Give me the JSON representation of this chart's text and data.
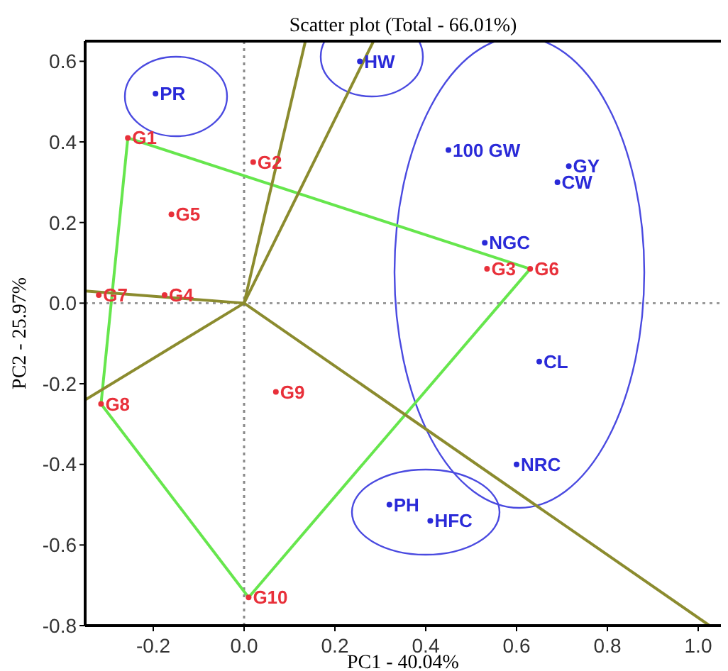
{
  "chart_data": {
    "type": "scatter",
    "title": "Scatter plot (Total - 66.01%)",
    "xlabel": "PC1 - 40.04%",
    "ylabel": "PC2 - 25.97%",
    "xlim": [
      -0.35,
      1.05
    ],
    "ylim": [
      -0.8,
      0.65
    ],
    "xticks": [
      {
        "value": -0.2,
        "label": "-0.2"
      },
      {
        "value": 0,
        "label": "0.0"
      },
      {
        "value": 0.2,
        "label": "0.2"
      },
      {
        "value": 0.4,
        "label": "0.4"
      },
      {
        "value": 0.6,
        "label": "0.6"
      },
      {
        "value": 0.8,
        "label": "0.8"
      },
      {
        "value": 1,
        "label": "1.0"
      }
    ],
    "yticks": [
      {
        "value": -0.8,
        "label": "-0.8"
      },
      {
        "value": -0.6,
        "label": "-0.6"
      },
      {
        "value": -0.4,
        "label": "-0.4"
      },
      {
        "value": -0.2,
        "label": "-0.2"
      },
      {
        "value": 0,
        "label": "0.0"
      },
      {
        "value": 0.2,
        "label": "0.2"
      },
      {
        "value": 0.4,
        "label": "0.4"
      },
      {
        "value": 0.6,
        "label": "0.6"
      }
    ],
    "grid": false,
    "marker": "circle",
    "ref_lines": [
      {
        "axis": "x",
        "value": 0,
        "line_style": "dotted",
        "color": "#888888"
      },
      {
        "axis": "y",
        "value": 0,
        "line_style": "dotted",
        "color": "#9a9a9a"
      }
    ],
    "series": [
      {
        "type": "line",
        "marker": "none",
        "color": "#66e64d",
        "x": [
          -0.256,
          0.63
        ],
        "values": [
          0.41,
          0.085
        ]
      },
      {
        "type": "line",
        "marker": "none",
        "color": "#66e64d",
        "x": [
          0.01,
          0.63
        ],
        "values": [
          -0.73,
          0.085
        ]
      },
      {
        "type": "line",
        "marker": "none",
        "color": "#66e64d",
        "x": [
          -0.315,
          0.01
        ],
        "values": [
          -0.25,
          -0.73
        ]
      },
      {
        "type": "line",
        "marker": "none",
        "color": "#66e64d",
        "x": [
          -0.315,
          -0.256
        ],
        "values": [
          -0.25,
          0.41
        ]
      },
      {
        "type": "line",
        "marker": "none",
        "color": "#8b8b2e",
        "x": [
          0,
          0.135
        ],
        "values": [
          0,
          0.65
        ]
      },
      {
        "type": "line",
        "marker": "none",
        "color": "#8b8b2e",
        "x": [
          0,
          0.285
        ],
        "values": [
          0,
          0.65
        ]
      },
      {
        "type": "line",
        "marker": "none",
        "color": "#8b8b2e",
        "x": [
          -0.35,
          0
        ],
        "values": [
          0.03,
          0
        ]
      },
      {
        "type": "line",
        "marker": "none",
        "color": "#8b8b2e",
        "x": [
          -0.35,
          0
        ],
        "values": [
          -0.24,
          0
        ]
      },
      {
        "type": "line",
        "marker": "none",
        "color": "#8b8b2e",
        "x": [
          0,
          1.025
        ],
        "values": [
          0,
          -0.8
        ]
      },
      {
        "name": "G1",
        "color": "#e8303a",
        "x": [
          -0.256
        ],
        "values": [
          0.41
        ]
      },
      {
        "name": "G2",
        "color": "#e8303a",
        "x": [
          0.02
        ],
        "values": [
          0.35
        ]
      },
      {
        "name": "G3",
        "color": "#e8303a",
        "x": [
          0.535
        ],
        "values": [
          0.085
        ]
      },
      {
        "name": "G4",
        "color": "#e8303a",
        "x": [
          -0.175
        ],
        "values": [
          0.02
        ]
      },
      {
        "name": "G5",
        "color": "#e8303a",
        "x": [
          -0.16
        ],
        "values": [
          0.22
        ]
      },
      {
        "name": "G6",
        "color": "#e8303a",
        "x": [
          0.63
        ],
        "values": [
          0.085
        ]
      },
      {
        "name": "G7",
        "color": "#e8303a",
        "x": [
          -0.32
        ],
        "values": [
          0.02
        ]
      },
      {
        "name": "G8",
        "color": "#e8303a",
        "x": [
          -0.315
        ],
        "values": [
          -0.25
        ]
      },
      {
        "name": "G9",
        "color": "#e8303a",
        "x": [
          0.07
        ],
        "values": [
          -0.22
        ]
      },
      {
        "name": "G10",
        "color": "#e8303a",
        "x": [
          0.01
        ],
        "values": [
          -0.73
        ]
      },
      {
        "name": "PR",
        "color": "#2a2ad8",
        "x": [
          -0.195
        ],
        "values": [
          0.52
        ]
      },
      {
        "name": "HW",
        "color": "#2a2ad8",
        "x": [
          0.255
        ],
        "values": [
          0.6
        ]
      },
      {
        "name": "100 GW",
        "color": "#2a2ad8",
        "x": [
          0.45
        ],
        "values": [
          0.38
        ]
      },
      {
        "name": "GY",
        "color": "#2a2ad8",
        "x": [
          0.715
        ],
        "values": [
          0.34
        ]
      },
      {
        "name": "CW",
        "color": "#2a2ad8",
        "x": [
          0.69
        ],
        "values": [
          0.3
        ]
      },
      {
        "name": "NGC",
        "color": "#2a2ad8",
        "x": [
          0.53
        ],
        "values": [
          0.15
        ]
      },
      {
        "name": "CL",
        "color": "#2a2ad8",
        "x": [
          0.65
        ],
        "values": [
          -0.145
        ]
      },
      {
        "name": "NRC",
        "color": "#2a2ad8",
        "x": [
          0.6
        ],
        "values": [
          -0.4
        ]
      },
      {
        "name": "PH",
        "color": "#2a2ad8",
        "x": [
          0.32
        ],
        "values": [
          -0.5
        ]
      },
      {
        "name": "HFC",
        "color": "#2a2ad8",
        "x": [
          0.41
        ],
        "values": [
          -0.54
        ]
      }
    ]
  }
}
